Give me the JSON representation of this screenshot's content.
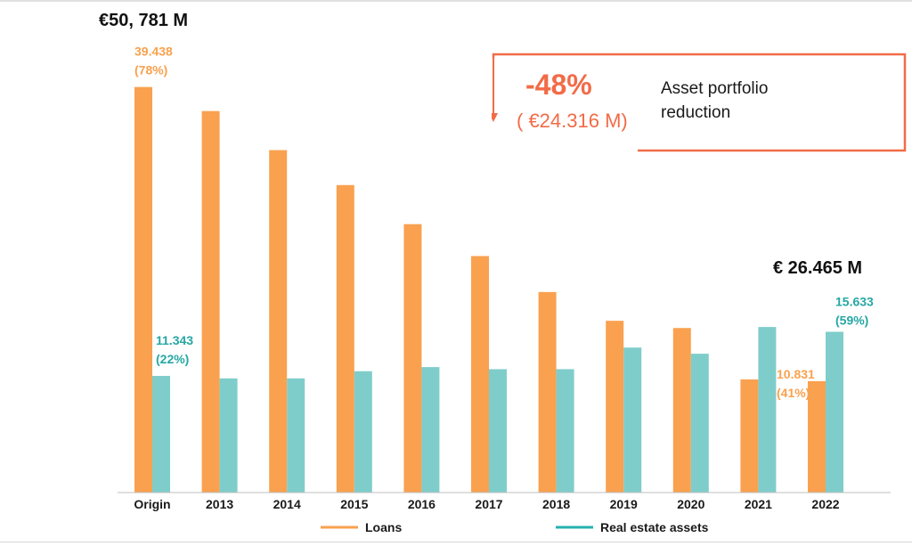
{
  "chart_data": {
    "type": "bar",
    "categories": [
      "Origin",
      "2013",
      "2014",
      "2015",
      "2016",
      "2017",
      "2018",
      "2019",
      "2020",
      "2021",
      "2022"
    ],
    "series": [
      {
        "name": "Loans",
        "color": "#f9a14f",
        "values": [
          39.438,
          37.1,
          33.3,
          29.9,
          26.1,
          23.0,
          19.5,
          16.7,
          16.0,
          11.0,
          10.831
        ]
      },
      {
        "name": "Real estate assets",
        "color": "#7fcdcb",
        "values": [
          11.343,
          11.1,
          11.1,
          11.8,
          12.2,
          12.0,
          12.0,
          14.1,
          13.5,
          16.1,
          15.633
        ]
      }
    ],
    "ylim": [
      0,
      44
    ],
    "grid": false,
    "legend_position": "bottom",
    "data_labels": [
      {
        "category": "Origin",
        "series": "Loans",
        "value": "39.438",
        "share": "(78%)"
      },
      {
        "category": "Origin",
        "series": "Real estate assets",
        "value": "11.343",
        "share": "(22%)"
      },
      {
        "category": "2022",
        "series": "Loans",
        "value": "10.831",
        "share": "(41%)"
      },
      {
        "category": "2022",
        "series": "Real estate assets",
        "value": "15.633",
        "share": "(59%)"
      }
    ],
    "totals": {
      "origin": "€50, 781 M",
      "final": "€ 26.465 M"
    }
  },
  "callout": {
    "percent": "-48%",
    "amount": "( €24.316 M)",
    "text": "Asset portfolio reduction",
    "arrow": "down-arrow-icon",
    "color": "#f26b47"
  },
  "legend": [
    {
      "label": "Loans",
      "color": "#f9a14f"
    },
    {
      "label": "Real estate assets",
      "color": "#26b1ae"
    }
  ],
  "colors": {
    "axis": "#bfbfbf",
    "text": "#1a1a1a"
  }
}
